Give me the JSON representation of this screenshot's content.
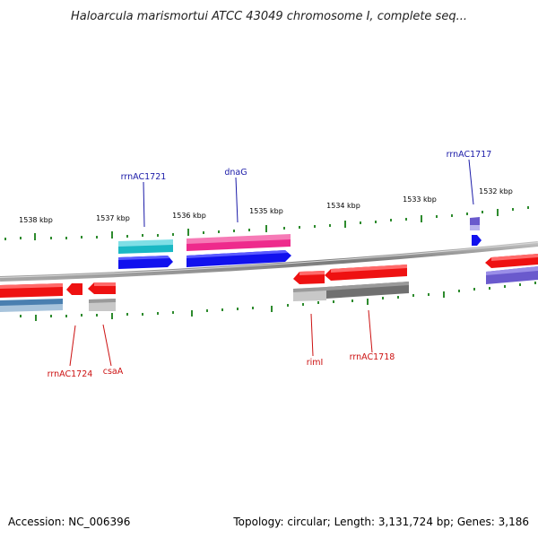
{
  "title": "Haloarcula marismortui ATCC 43049 chromosome I, complete seq...",
  "footer": {
    "accession": "Accession: NC_006396",
    "summary": "Topology: circular; Length: 3,131,724 bp; Genes: 3,186"
  },
  "ruler": {
    "unit": "kbp",
    "labels": [
      "1538 kbp",
      "1537 kbp",
      "1536 kbp",
      "1535 kbp",
      "1534 kbp",
      "1533 kbp",
      "1532 kbp"
    ]
  },
  "colors": {
    "backbone": "#8c8c8c",
    "tick": "#2e8b2e",
    "forward_label": "#1a1aa8",
    "reverse_label": "#cc1111",
    "red": "#ee1111",
    "blue": "#1111ee",
    "cyan": "#1ab8c4",
    "magenta": "#ee2a8c",
    "purple": "#6a5acd",
    "gray": "#707070",
    "light_gray": "#bdbdbd",
    "steel": "#4a7fb0"
  },
  "gene_labels": {
    "forward": [
      "rrnAC1721",
      "dnaG",
      "rrnAC1717"
    ],
    "reverse": [
      "rrnAC1724",
      "csaA",
      "rimI",
      "rrnAC1718"
    ]
  }
}
